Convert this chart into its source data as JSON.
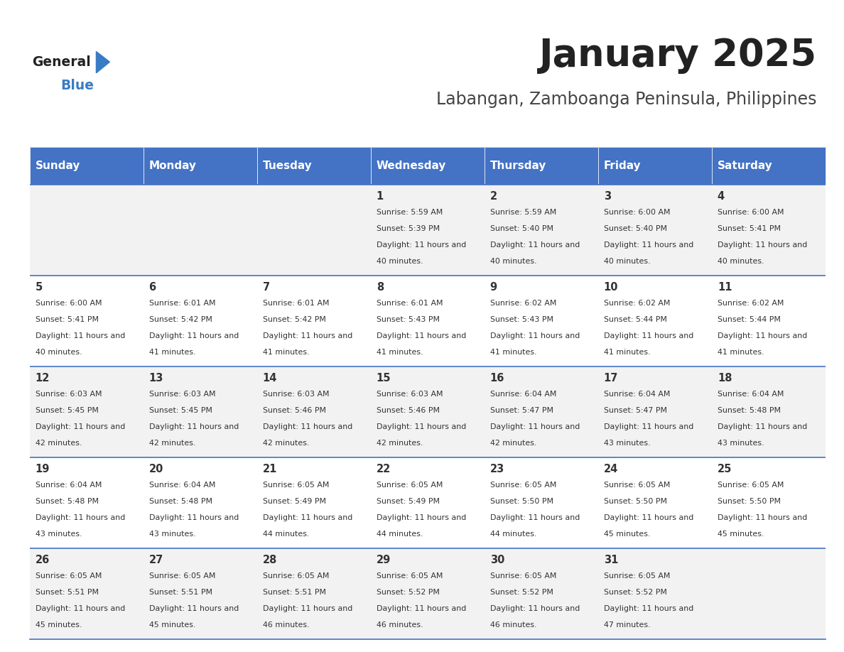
{
  "title": "January 2025",
  "subtitle": "Labangan, Zamboanga Peninsula, Philippines",
  "days_of_week": [
    "Sunday",
    "Monday",
    "Tuesday",
    "Wednesday",
    "Thursday",
    "Friday",
    "Saturday"
  ],
  "header_bg": "#4472C4",
  "header_text_color": "#FFFFFF",
  "row_bg_odd": "#F2F2F2",
  "row_bg_even": "#FFFFFF",
  "cell_text_color": "#333333",
  "border_color": "#4472C4",
  "title_color": "#222222",
  "subtitle_color": "#444444",
  "logo_general_color": "#222222",
  "logo_blue_color": "#3A7CC3",
  "first_day_col": 3,
  "num_days": 31,
  "calendar_data": {
    "1": {
      "sunrise": "5:59 AM",
      "sunset": "5:39 PM",
      "daylight": "11 hours and 40 minutes."
    },
    "2": {
      "sunrise": "5:59 AM",
      "sunset": "5:40 PM",
      "daylight": "11 hours and 40 minutes."
    },
    "3": {
      "sunrise": "6:00 AM",
      "sunset": "5:40 PM",
      "daylight": "11 hours and 40 minutes."
    },
    "4": {
      "sunrise": "6:00 AM",
      "sunset": "5:41 PM",
      "daylight": "11 hours and 40 minutes."
    },
    "5": {
      "sunrise": "6:00 AM",
      "sunset": "5:41 PM",
      "daylight": "11 hours and 40 minutes."
    },
    "6": {
      "sunrise": "6:01 AM",
      "sunset": "5:42 PM",
      "daylight": "11 hours and 41 minutes."
    },
    "7": {
      "sunrise": "6:01 AM",
      "sunset": "5:42 PM",
      "daylight": "11 hours and 41 minutes."
    },
    "8": {
      "sunrise": "6:01 AM",
      "sunset": "5:43 PM",
      "daylight": "11 hours and 41 minutes."
    },
    "9": {
      "sunrise": "6:02 AM",
      "sunset": "5:43 PM",
      "daylight": "11 hours and 41 minutes."
    },
    "10": {
      "sunrise": "6:02 AM",
      "sunset": "5:44 PM",
      "daylight": "11 hours and 41 minutes."
    },
    "11": {
      "sunrise": "6:02 AM",
      "sunset": "5:44 PM",
      "daylight": "11 hours and 41 minutes."
    },
    "12": {
      "sunrise": "6:03 AM",
      "sunset": "5:45 PM",
      "daylight": "11 hours and 42 minutes."
    },
    "13": {
      "sunrise": "6:03 AM",
      "sunset": "5:45 PM",
      "daylight": "11 hours and 42 minutes."
    },
    "14": {
      "sunrise": "6:03 AM",
      "sunset": "5:46 PM",
      "daylight": "11 hours and 42 minutes."
    },
    "15": {
      "sunrise": "6:03 AM",
      "sunset": "5:46 PM",
      "daylight": "11 hours and 42 minutes."
    },
    "16": {
      "sunrise": "6:04 AM",
      "sunset": "5:47 PM",
      "daylight": "11 hours and 42 minutes."
    },
    "17": {
      "sunrise": "6:04 AM",
      "sunset": "5:47 PM",
      "daylight": "11 hours and 43 minutes."
    },
    "18": {
      "sunrise": "6:04 AM",
      "sunset": "5:48 PM",
      "daylight": "11 hours and 43 minutes."
    },
    "19": {
      "sunrise": "6:04 AM",
      "sunset": "5:48 PM",
      "daylight": "11 hours and 43 minutes."
    },
    "20": {
      "sunrise": "6:04 AM",
      "sunset": "5:48 PM",
      "daylight": "11 hours and 43 minutes."
    },
    "21": {
      "sunrise": "6:05 AM",
      "sunset": "5:49 PM",
      "daylight": "11 hours and 44 minutes."
    },
    "22": {
      "sunrise": "6:05 AM",
      "sunset": "5:49 PM",
      "daylight": "11 hours and 44 minutes."
    },
    "23": {
      "sunrise": "6:05 AM",
      "sunset": "5:50 PM",
      "daylight": "11 hours and 44 minutes."
    },
    "24": {
      "sunrise": "6:05 AM",
      "sunset": "5:50 PM",
      "daylight": "11 hours and 45 minutes."
    },
    "25": {
      "sunrise": "6:05 AM",
      "sunset": "5:50 PM",
      "daylight": "11 hours and 45 minutes."
    },
    "26": {
      "sunrise": "6:05 AM",
      "sunset": "5:51 PM",
      "daylight": "11 hours and 45 minutes."
    },
    "27": {
      "sunrise": "6:05 AM",
      "sunset": "5:51 PM",
      "daylight": "11 hours and 45 minutes."
    },
    "28": {
      "sunrise": "6:05 AM",
      "sunset": "5:51 PM",
      "daylight": "11 hours and 46 minutes."
    },
    "29": {
      "sunrise": "6:05 AM",
      "sunset": "5:52 PM",
      "daylight": "11 hours and 46 minutes."
    },
    "30": {
      "sunrise": "6:05 AM",
      "sunset": "5:52 PM",
      "daylight": "11 hours and 46 minutes."
    },
    "31": {
      "sunrise": "6:05 AM",
      "sunset": "5:52 PM",
      "daylight": "11 hours and 47 minutes."
    }
  }
}
